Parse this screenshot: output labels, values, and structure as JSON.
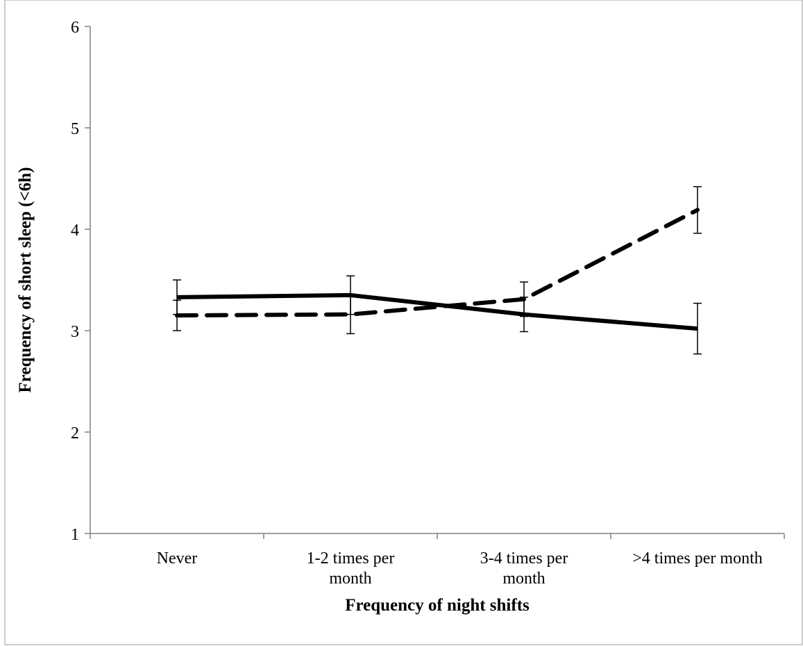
{
  "chart_data": {
    "type": "line",
    "title": "",
    "xlabel": "Frequency of night shifts",
    "ylabel": "Frequency of short sleep (<6h)",
    "categories": [
      [
        "Never"
      ],
      [
        "1-2 times per",
        "month"
      ],
      [
        "3-4 times per",
        "month"
      ],
      [
        ">4 times per month"
      ]
    ],
    "ylim": [
      1,
      6
    ],
    "yticks": [
      1,
      2,
      3,
      4,
      5,
      6
    ],
    "grid": false,
    "legend": "none",
    "series": [
      {
        "style": "solid",
        "color": "#000000",
        "values": [
          3.33,
          3.35,
          3.16,
          3.02
        ],
        "error": [
          0.17,
          0.19,
          0.17,
          0.25
        ]
      },
      {
        "style": "dashed",
        "color": "#000000",
        "values": [
          3.15,
          3.16,
          3.31,
          4.19
        ],
        "error": [
          0.15,
          0.19,
          0.17,
          0.23
        ]
      }
    ]
  }
}
